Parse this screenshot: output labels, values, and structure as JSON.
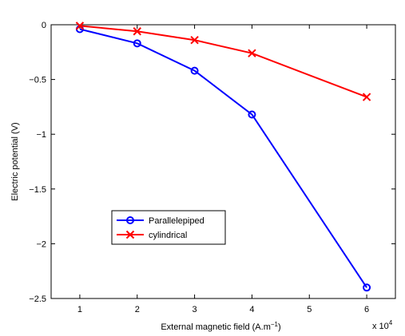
{
  "chart_data": {
    "type": "line",
    "title": "",
    "xlabel": "External magnetic field (A.m",
    "xlabel_sup": "−1",
    "xlabel_close": ")",
    "ylabel": "Electric potential (V)",
    "x_multiplier_base": "x 10",
    "x_multiplier_exp": "4",
    "xlim": [
      0.5,
      6.5
    ],
    "ylim": [
      -2.5,
      0
    ],
    "x_ticks": [
      1,
      2,
      3,
      4,
      5,
      6
    ],
    "x_tick_labels": [
      "1",
      "2",
      "3",
      "4",
      "5",
      "6"
    ],
    "y_ticks": [
      0,
      -0.5,
      -1,
      -1.5,
      -2,
      -2.5
    ],
    "y_tick_labels": [
      "0",
      "−0.5",
      "−1",
      "−1.5",
      "−2",
      "−2.5"
    ],
    "grid": false,
    "legend_position": "lower-left",
    "series": [
      {
        "name": "Parallelepiped",
        "color": "#0000ff",
        "marker": "circle",
        "x": [
          1,
          2,
          3,
          4,
          6
        ],
        "y": [
          -0.04,
          -0.17,
          -0.42,
          -0.82,
          -2.4
        ]
      },
      {
        "name": "cylindrical",
        "color": "#ff0000",
        "marker": "x",
        "x": [
          1,
          2,
          3,
          4,
          6
        ],
        "y": [
          -0.01,
          -0.06,
          -0.14,
          -0.26,
          -0.66
        ]
      }
    ]
  }
}
